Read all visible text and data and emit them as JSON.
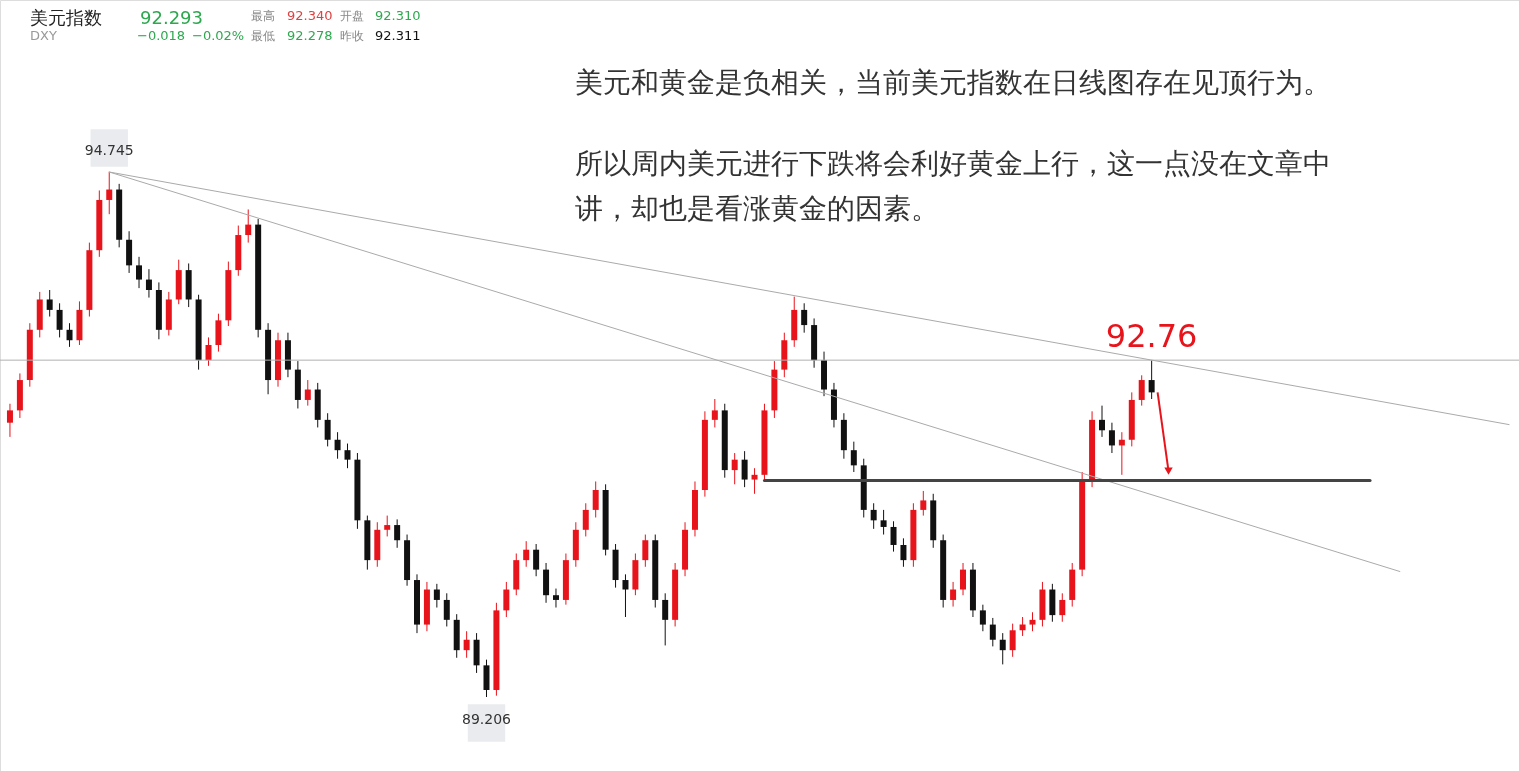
{
  "chart_data": {
    "type": "candlestick",
    "tick_labels": false,
    "categories": [
      null,
      null,
      null,
      null,
      null,
      null,
      null,
      null,
      null,
      null,
      null,
      null,
      null,
      null,
      null,
      null,
      null,
      null,
      null,
      null,
      null,
      null,
      null,
      null,
      null,
      null,
      null,
      null,
      null,
      null,
      null,
      null,
      null,
      null,
      null,
      null,
      null,
      null,
      null,
      null,
      null,
      null,
      null,
      null,
      null,
      null,
      null,
      null,
      null,
      null,
      null,
      null,
      null,
      null,
      null,
      null,
      null,
      null,
      null,
      null,
      null,
      null,
      null,
      null,
      null,
      null,
      null,
      null,
      null,
      null,
      null,
      null,
      null,
      null,
      null,
      null,
      null,
      null,
      null,
      null,
      null,
      null,
      null,
      null,
      null,
      null,
      null,
      null,
      null,
      null,
      null,
      null,
      null,
      null,
      null,
      null,
      null,
      null,
      null,
      null,
      null,
      null,
      null,
      null,
      null,
      null,
      null,
      null,
      null,
      null,
      null,
      null,
      null,
      null,
      null,
      null,
      null,
      null,
      null,
      null,
      null,
      null,
      null,
      null,
      null,
      null,
      null,
      null,
      null,
      null,
      null,
      null,
      null,
      null,
      null,
      null,
      null,
      null,
      null,
      null,
      null,
      null,
      null,
      null,
      null,
      null,
      null,
      null,
      null,
      null,
      null,
      null
    ],
    "ohlc": [
      [
        92.1,
        92.3,
        91.95,
        92.23
      ],
      [
        92.23,
        92.62,
        92.15,
        92.55
      ],
      [
        92.55,
        93.15,
        92.48,
        93.08
      ],
      [
        93.08,
        93.48,
        93.0,
        93.4
      ],
      [
        93.4,
        93.5,
        93.22,
        93.29
      ],
      [
        93.29,
        93.36,
        93.0,
        93.08
      ],
      [
        93.08,
        93.15,
        92.9,
        92.97
      ],
      [
        92.97,
        93.38,
        92.92,
        93.29
      ],
      [
        93.29,
        94.0,
        93.22,
        93.92
      ],
      [
        93.92,
        94.55,
        93.85,
        94.45
      ],
      [
        94.45,
        94.745,
        94.3,
        94.56
      ],
      [
        94.56,
        94.62,
        93.95,
        94.03
      ],
      [
        94.03,
        94.12,
        93.68,
        93.76
      ],
      [
        93.76,
        93.85,
        93.52,
        93.61
      ],
      [
        93.61,
        93.72,
        93.42,
        93.5
      ],
      [
        93.5,
        93.58,
        92.98,
        93.08
      ],
      [
        93.08,
        93.48,
        93.02,
        93.4
      ],
      [
        93.4,
        93.82,
        93.35,
        93.71
      ],
      [
        93.71,
        93.78,
        93.32,
        93.4
      ],
      [
        93.4,
        93.45,
        92.66,
        92.76
      ],
      [
        92.76,
        93.0,
        92.7,
        92.92
      ],
      [
        92.92,
        93.25,
        92.85,
        93.18
      ],
      [
        93.18,
        93.8,
        93.12,
        93.71
      ],
      [
        93.71,
        94.18,
        93.65,
        94.08
      ],
      [
        94.08,
        94.35,
        94.0,
        94.19
      ],
      [
        94.19,
        94.25,
        93.0,
        93.08
      ],
      [
        93.08,
        93.15,
        92.4,
        92.55
      ],
      [
        92.55,
        93.05,
        92.48,
        92.97
      ],
      [
        92.97,
        93.05,
        92.58,
        92.66
      ],
      [
        92.66,
        92.75,
        92.25,
        92.34
      ],
      [
        92.34,
        92.55,
        92.28,
        92.45
      ],
      [
        92.45,
        92.52,
        92.05,
        92.13
      ],
      [
        92.13,
        92.2,
        91.85,
        91.92
      ],
      [
        91.92,
        92.0,
        91.72,
        91.81
      ],
      [
        91.81,
        91.88,
        91.62,
        91.71
      ],
      [
        91.71,
        91.78,
        90.98,
        91.07
      ],
      [
        91.07,
        91.12,
        90.55,
        90.65
      ],
      [
        90.65,
        91.05,
        90.58,
        90.97
      ],
      [
        90.97,
        91.12,
        90.9,
        91.02
      ],
      [
        91.02,
        91.08,
        90.78,
        90.86
      ],
      [
        90.86,
        90.92,
        90.38,
        90.44
      ],
      [
        90.44,
        90.5,
        89.88,
        89.97
      ],
      [
        89.97,
        90.42,
        89.9,
        90.34
      ],
      [
        90.34,
        90.4,
        90.15,
        90.23
      ],
      [
        90.23,
        90.3,
        89.95,
        90.02
      ],
      [
        90.02,
        90.08,
        89.62,
        89.7
      ],
      [
        89.7,
        89.9,
        89.62,
        89.81
      ],
      [
        89.81,
        89.88,
        89.46,
        89.54
      ],
      [
        89.54,
        89.6,
        89.206,
        89.28
      ],
      [
        89.28,
        90.2,
        89.22,
        90.12
      ],
      [
        90.12,
        90.42,
        90.05,
        90.34
      ],
      [
        90.34,
        90.72,
        90.28,
        90.65
      ],
      [
        90.65,
        90.85,
        90.58,
        90.76
      ],
      [
        90.76,
        90.82,
        90.48,
        90.55
      ],
      [
        90.55,
        90.62,
        90.2,
        90.28
      ],
      [
        90.28,
        90.35,
        90.15,
        90.23
      ],
      [
        90.23,
        90.72,
        90.18,
        90.65
      ],
      [
        90.65,
        91.05,
        90.58,
        90.97
      ],
      [
        90.97,
        91.25,
        90.9,
        91.18
      ],
      [
        91.18,
        91.48,
        91.1,
        91.39
      ],
      [
        91.39,
        91.45,
        90.7,
        90.76
      ],
      [
        90.76,
        90.82,
        90.36,
        90.44
      ],
      [
        90.44,
        90.5,
        90.05,
        90.34
      ],
      [
        90.34,
        90.72,
        90.28,
        90.65
      ],
      [
        90.65,
        90.92,
        90.58,
        90.86
      ],
      [
        90.86,
        90.92,
        90.15,
        90.23
      ],
      [
        90.23,
        90.3,
        89.75,
        90.02
      ],
      [
        90.02,
        90.62,
        89.95,
        90.55
      ],
      [
        90.55,
        91.05,
        90.48,
        90.97
      ],
      [
        90.97,
        91.48,
        90.9,
        91.39
      ],
      [
        91.39,
        92.22,
        91.32,
        92.13
      ],
      [
        92.13,
        92.35,
        92.05,
        92.23
      ],
      [
        92.23,
        92.3,
        91.52,
        91.6
      ],
      [
        91.6,
        91.78,
        91.45,
        91.71
      ],
      [
        91.71,
        91.8,
        91.42,
        91.5
      ],
      [
        91.5,
        91.62,
        91.35,
        91.55
      ],
      [
        91.55,
        92.3,
        91.48,
        92.23
      ],
      [
        92.23,
        92.75,
        92.15,
        92.66
      ],
      [
        92.66,
        93.05,
        92.58,
        92.97
      ],
      [
        92.97,
        93.43,
        92.9,
        93.29
      ],
      [
        93.29,
        93.36,
        93.05,
        93.13
      ],
      [
        93.13,
        93.2,
        92.68,
        92.76
      ],
      [
        92.76,
        92.85,
        92.38,
        92.45
      ],
      [
        92.45,
        92.52,
        92.05,
        92.13
      ],
      [
        92.13,
        92.2,
        91.72,
        91.81
      ],
      [
        91.81,
        91.9,
        91.58,
        91.65
      ],
      [
        91.65,
        91.72,
        91.1,
        91.18
      ],
      [
        91.18,
        91.25,
        90.98,
        91.07
      ],
      [
        91.07,
        91.18,
        90.92,
        91.0
      ],
      [
        91.0,
        91.06,
        90.74,
        90.81
      ],
      [
        90.81,
        90.88,
        90.58,
        90.65
      ],
      [
        90.65,
        91.25,
        90.58,
        91.18
      ],
      [
        91.18,
        91.38,
        91.12,
        91.28
      ],
      [
        91.28,
        91.35,
        90.78,
        90.86
      ],
      [
        90.86,
        90.92,
        90.15,
        90.23
      ],
      [
        90.23,
        90.42,
        90.16,
        90.34
      ],
      [
        90.34,
        90.62,
        90.28,
        90.55
      ],
      [
        90.55,
        90.62,
        90.05,
        90.12
      ],
      [
        90.12,
        90.18,
        89.9,
        89.97
      ],
      [
        89.97,
        90.04,
        89.74,
        89.81
      ],
      [
        89.81,
        89.88,
        89.55,
        89.7
      ],
      [
        89.7,
        89.98,
        89.63,
        89.91
      ],
      [
        89.91,
        90.05,
        89.85,
        89.97
      ],
      [
        89.97,
        90.1,
        89.9,
        90.02
      ],
      [
        90.02,
        90.42,
        89.95,
        90.34
      ],
      [
        90.34,
        90.4,
        90.0,
        90.07
      ],
      [
        90.07,
        90.3,
        90.0,
        90.23
      ],
      [
        90.23,
        90.62,
        90.16,
        90.55
      ],
      [
        90.55,
        91.58,
        90.48,
        91.5
      ],
      [
        91.5,
        92.22,
        91.42,
        92.13
      ],
      [
        92.13,
        92.28,
        91.95,
        92.02
      ],
      [
        92.02,
        92.1,
        91.78,
        91.86
      ],
      [
        91.86,
        92.0,
        91.55,
        91.92
      ],
      [
        91.92,
        92.42,
        91.85,
        92.34
      ],
      [
        92.34,
        92.6,
        92.28,
        92.55
      ],
      [
        92.55,
        92.76,
        92.35,
        92.42
      ],
      null,
      null,
      null,
      null,
      null,
      null,
      null,
      null,
      null,
      null,
      null,
      null,
      null,
      null,
      null,
      null,
      null,
      null,
      null,
      null,
      null,
      null,
      null,
      null,
      null,
      null,
      null,
      null,
      null,
      null,
      null,
      null,
      null,
      null,
      null,
      null
    ],
    "colors": [
      "#e8141c",
      "#e8141c",
      "#e8141c",
      "#e8141c",
      "#111111",
      "#111111",
      "#111111",
      "#e8141c",
      "#e8141c",
      "#e8141c",
      "#e8141c",
      "#111111",
      "#111111",
      "#111111",
      "#111111",
      "#111111",
      "#e8141c",
      "#e8141c",
      "#111111",
      "#111111",
      "#e8141c",
      "#e8141c",
      "#e8141c",
      "#e8141c",
      "#e8141c",
      "#111111",
      "#111111",
      "#e8141c",
      "#111111",
      "#111111",
      "#e8141c",
      "#111111",
      "#111111",
      "#111111",
      "#111111",
      "#111111",
      "#111111",
      "#e8141c",
      "#e8141c",
      "#111111",
      "#111111",
      "#111111",
      "#e8141c",
      "#111111",
      "#111111",
      "#111111",
      "#e8141c",
      "#111111",
      "#111111",
      "#e8141c",
      "#e8141c",
      "#e8141c",
      "#e8141c",
      "#111111",
      "#111111",
      "#111111",
      "#e8141c",
      "#e8141c",
      "#e8141c",
      "#e8141c",
      "#111111",
      "#111111",
      "#111111",
      "#e8141c",
      "#e8141c",
      "#111111",
      "#111111",
      "#e8141c",
      "#e8141c",
      "#e8141c",
      "#e8141c",
      "#e8141c",
      "#111111",
      "#e8141c",
      "#111111",
      "#e8141c",
      "#e8141c",
      "#e8141c",
      "#e8141c",
      "#e8141c",
      "#111111",
      "#111111",
      "#111111",
      "#111111",
      "#111111",
      "#111111",
      "#111111",
      "#111111",
      "#111111",
      "#111111",
      "#111111",
      "#e8141c",
      "#e8141c",
      "#111111",
      "#111111",
      "#e8141c",
      "#e8141c",
      "#111111",
      "#111111",
      "#111111",
      "#111111",
      "#e8141c",
      "#e8141c",
      "#e8141c",
      "#e8141c",
      "#111111",
      "#e8141c",
      "#e8141c",
      "#e8141c",
      "#e8141c",
      "#111111",
      "#111111",
      "#e8141c",
      "#e8141c",
      "#e8141c",
      "#111111",
      null,
      null,
      null,
      null,
      null,
      null,
      null,
      null,
      null,
      null,
      null,
      null,
      null,
      null,
      null,
      null,
      null,
      null,
      null,
      null,
      null,
      null,
      null,
      null,
      null,
      null,
      null,
      null,
      null,
      null,
      null,
      null,
      null,
      null,
      null,
      null
    ],
    "series": [
      {
        "type": "line",
        "color": "#aaaaaa",
        "values": [
          null,
          null,
          null,
          null,
          null,
          null,
          null,
          null,
          null,
          null,
          94.745,
          null,
          null,
          null,
          null,
          null,
          null,
          null,
          null,
          null,
          null,
          null,
          null,
          null,
          null,
          null,
          null,
          null,
          null,
          null,
          null,
          null,
          null,
          null,
          null,
          null,
          null,
          null,
          null,
          null,
          null,
          null,
          null,
          null,
          null,
          null,
          null,
          null,
          null,
          null,
          null,
          null,
          null,
          null,
          null,
          null,
          null,
          null,
          null,
          null,
          null,
          null,
          null,
          null,
          null,
          null,
          null,
          null,
          null,
          null,
          null,
          null,
          null,
          null,
          null,
          null,
          null,
          null,
          null,
          null,
          null,
          null,
          null,
          null,
          null,
          null,
          null,
          null,
          null,
          null,
          null,
          null,
          null,
          null,
          null,
          null,
          null,
          null,
          null,
          null,
          null,
          null,
          null,
          null,
          null,
          null,
          null,
          null,
          null,
          null,
          null,
          null,
          null,
          null,
          null,
          null,
          null,
          null,
          null,
          null,
          null,
          null,
          null,
          null,
          null,
          null,
          null,
          null,
          null,
          null,
          null,
          null,
          null,
          null,
          null,
          null,
          null,
          null,
          null,
          null,
          null,
          null,
          null,
          null,
          null,
          null,
          null,
          null,
          null,
          null,
          null,
          92.08
        ]
      },
      {
        "type": "line",
        "color": "#aaaaaa",
        "values": [
          null,
          null,
          null,
          null,
          null,
          null,
          null,
          null,
          null,
          null,
          94.745,
          null,
          null,
          null,
          null,
          null,
          null,
          null,
          null,
          null,
          null,
          null,
          null,
          null,
          null,
          null,
          null,
          null,
          null,
          null,
          null,
          null,
          null,
          null,
          null,
          null,
          null,
          null,
          null,
          null,
          null,
          null,
          null,
          null,
          null,
          null,
          null,
          null,
          null,
          null,
          null,
          null,
          null,
          null,
          null,
          null,
          null,
          null,
          null,
          null,
          null,
          null,
          null,
          null,
          null,
          null,
          null,
          null,
          null,
          null,
          null,
          null,
          null,
          null,
          null,
          null,
          null,
          null,
          null,
          null,
          null,
          null,
          null,
          null,
          null,
          null,
          null,
          null,
          null,
          null,
          null,
          null,
          null,
          null,
          null,
          null,
          null,
          null,
          null,
          null,
          null,
          null,
          null,
          null,
          null,
          null,
          null,
          null,
          null,
          null,
          null,
          null,
          null,
          null,
          null,
          null,
          null,
          null,
          null,
          null,
          null,
          null,
          null,
          null,
          null,
          null,
          null,
          null,
          null,
          null,
          null,
          null,
          null,
          null,
          null,
          null,
          null,
          null,
          null,
          null,
          90.53,
          null,
          null,
          null,
          null,
          null,
          null,
          null,
          null,
          null,
          null,
          null
        ]
      },
      {
        "type": "line",
        "color": "#444444",
        "values": [
          null,
          null,
          null,
          null,
          null,
          null,
          null,
          null,
          null,
          null,
          null,
          null,
          null,
          null,
          null,
          null,
          null,
          null,
          null,
          null,
          null,
          null,
          null,
          null,
          null,
          null,
          null,
          null,
          null,
          null,
          null,
          null,
          null,
          null,
          null,
          null,
          null,
          null,
          null,
          null,
          null,
          null,
          null,
          null,
          null,
          null,
          null,
          null,
          null,
          null,
          null,
          null,
          null,
          null,
          null,
          null,
          null,
          null,
          null,
          null,
          null,
          null,
          null,
          null,
          null,
          null,
          null,
          null,
          null,
          null,
          null,
          null,
          null,
          null,
          null,
          null,
          91.49,
          null,
          null,
          null,
          null,
          null,
          null,
          null,
          null,
          null,
          null,
          null,
          null,
          null,
          null,
          null,
          null,
          null,
          null,
          null,
          null,
          null,
          null,
          null,
          null,
          null,
          null,
          null,
          null,
          null,
          null,
          null,
          null,
          null,
          null,
          null,
          null,
          null,
          null,
          null,
          null,
          null,
          null,
          null,
          null,
          null,
          null,
          null,
          null,
          null,
          null,
          null,
          null,
          null,
          null,
          null,
          null,
          null,
          null,
          null,
          null,
          91.49,
          null,
          null,
          null,
          null,
          null,
          null,
          null,
          null,
          null,
          null,
          null,
          null,
          null,
          null
        ]
      }
    ],
    "ref_lines": [
      {
        "axis": "y",
        "value": 92.76,
        "color": "#b0b0b0"
      }
    ],
    "annotations": [
      "美元指数",
      "92.293",
      "DXY",
      "−0.018",
      "−0.02%",
      "最高",
      "92.340",
      "开盘",
      "92.310",
      "最低",
      "92.278",
      "昨收",
      "92.311",
      "美元和黄金是负相关，当前美元指数在日线图存在见顶行为。",
      "所以周内美元进行下跌将会利好黄金上行，这一点没在文章中",
      "讲，却也是看涨黄金的因素。",
      {
        "text": "94.745",
        "y": 94.745
      },
      {
        "text": "89.206",
        "y": 89.206
      },
      {
        "text": "92.76",
        "y": 92.76
      }
    ]
  }
}
